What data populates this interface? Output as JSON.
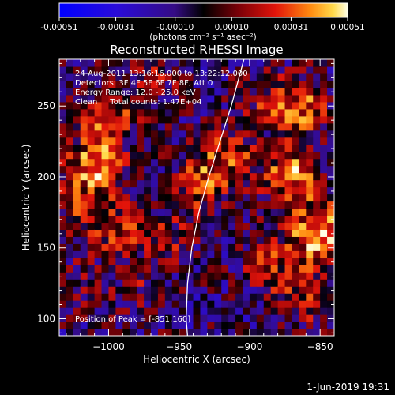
{
  "chart_data": {
    "type": "heatmap",
    "title": "Reconstructed RHESSI Image",
    "xlabel": "Heliocentric X (arcsec)",
    "ylabel": "Heliocentric Y (arcsec)",
    "xlim": [
      -1035,
      -840
    ],
    "ylim": [
      88,
      283
    ],
    "xticks": [
      -1000,
      -950,
      -900,
      -850
    ],
    "xtick_labels": [
      "−1000",
      "−950",
      "−900",
      "−850"
    ],
    "yticks": [
      100,
      150,
      200,
      250
    ],
    "ytick_labels": [
      "100",
      "150",
      "200",
      "250"
    ],
    "colorbar": {
      "range": [
        -0.00051,
        0.00051
      ],
      "tick_values": [
        -0.00051,
        -0.00031,
        -0.0001,
        0.0001,
        0.00031,
        0.00051
      ],
      "tick_labels": [
        "-0.00051",
        "-0.00031",
        "-0.00010",
        "0.00010",
        "0.00031",
        "0.00051"
      ],
      "units_label": "(photons cm⁻² s⁻¹ asec⁻²)"
    },
    "annotations": [
      "24-Aug-2011 13:16:16.000 to 13:22:12.000",
      "Detectors: 3F 4F 5F 6F 7F 8F, Att 0",
      "Energy Range: 12.0 - 25.0 keV",
      "Clean     Total counts: 1.47E+04"
    ],
    "peak_label": "Position of Peak = [-851,160]",
    "peak": [
      -851,
      160
    ],
    "limb_curve": [
      [
        -944,
        88
      ],
      [
        -945,
        100
      ],
      [
        -944,
        125
      ],
      [
        -941,
        150
      ],
      [
        -936,
        175
      ],
      [
        -929,
        200
      ],
      [
        -921,
        225
      ],
      [
        -913,
        250
      ],
      [
        -904,
        283
      ]
    ],
    "blobs": [
      {
        "x": -1010,
        "y": 210,
        "value": 0.00042
      },
      {
        "x": -1000,
        "y": 245,
        "value": 0.00028
      },
      {
        "x": -995,
        "y": 165,
        "value": 0.00024
      },
      {
        "x": -1020,
        "y": 180,
        "value": 0.0002
      },
      {
        "x": -935,
        "y": 195,
        "value": 0.00032
      },
      {
        "x": -915,
        "y": 215,
        "value": 0.00026
      },
      {
        "x": -960,
        "y": 155,
        "value": 0.00018
      },
      {
        "x": -970,
        "y": 270,
        "value": 0.00015
      },
      {
        "x": -980,
        "y": 120,
        "value": 0.00012
      },
      {
        "x": -865,
        "y": 250,
        "value": 0.00036
      },
      {
        "x": -870,
        "y": 200,
        "value": 0.0004
      },
      {
        "x": -851,
        "y": 160,
        "value": 0.00051
      },
      {
        "x": -860,
        "y": 115,
        "value": 0.00025
      },
      {
        "x": -885,
        "y": 140,
        "value": 0.00022
      },
      {
        "x": -895,
        "y": 255,
        "value": 0.00014
      },
      {
        "x": -1025,
        "y": 120,
        "value": 0.00012
      }
    ]
  },
  "footer": {
    "date": "1-Jun-2019 19:31"
  }
}
